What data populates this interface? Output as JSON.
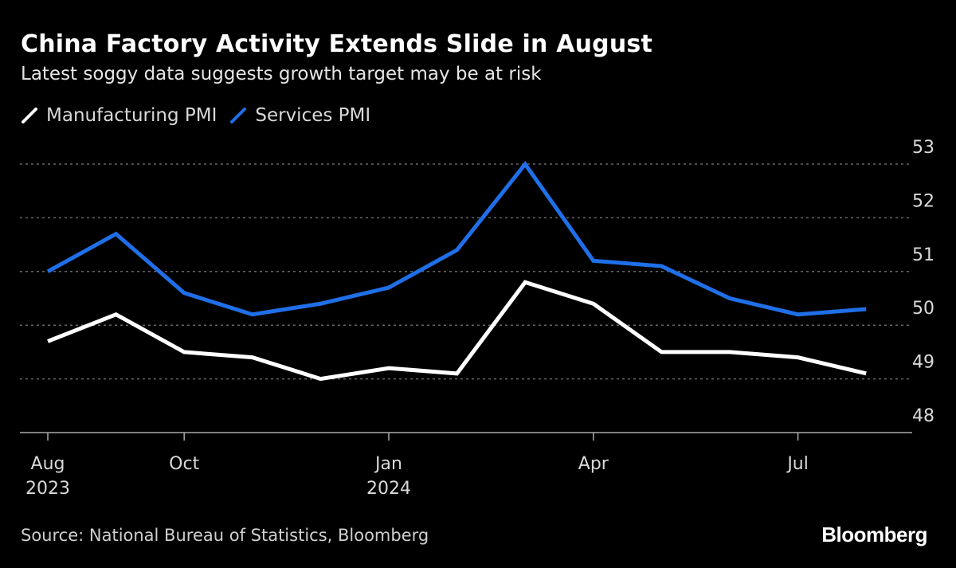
{
  "title": "China Factory Activity Extends Slide in August",
  "subtitle": "Latest soggy data suggests growth target may be at risk",
  "source": "Source: National Bureau of Statistics, Bloomberg",
  "logo": "Bloomberg",
  "chart_data": {
    "type": "line",
    "title": "China Factory Activity Extends Slide in August",
    "subtitle": "Latest soggy data suggests growth target may be at risk",
    "x": [
      "2023-08",
      "2023-09",
      "2023-10",
      "2023-11",
      "2023-12",
      "2024-01",
      "2024-02",
      "2024-03",
      "2024-04",
      "2024-05",
      "2024-06",
      "2024-07",
      "2024-08"
    ],
    "x_ticks": [
      {
        "index": 0,
        "label": "Aug",
        "year": "2023"
      },
      {
        "index": 2,
        "label": "Oct",
        "year": ""
      },
      {
        "index": 5,
        "label": "Jan",
        "year": "2024"
      },
      {
        "index": 8,
        "label": "Apr",
        "year": ""
      },
      {
        "index": 11,
        "label": "Jul",
        "year": ""
      }
    ],
    "y_ticks": [
      48,
      49,
      50,
      51,
      52,
      53
    ],
    "ylim": [
      48,
      53
    ],
    "y_axis_side": "right",
    "grid": "horizontal dotted",
    "legend_position": "top-left",
    "series": [
      {
        "name": "Manufacturing PMI",
        "color": "#ffffff",
        "values": [
          49.7,
          50.2,
          49.5,
          49.4,
          49.0,
          49.2,
          49.1,
          50.8,
          50.4,
          49.5,
          49.5,
          49.4,
          49.1
        ]
      },
      {
        "name": "Services PMI",
        "color": "#1f6fe8",
        "values": [
          51.0,
          51.7,
          50.6,
          50.2,
          50.4,
          50.7,
          51.4,
          53.0,
          51.2,
          51.1,
          50.5,
          50.2,
          50.3
        ]
      }
    ]
  }
}
